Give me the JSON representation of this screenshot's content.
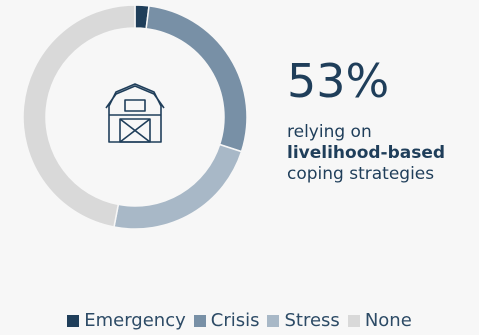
{
  "chart_data": {
    "type": "pie",
    "categories": [
      "Emergency",
      "Crisis",
      "Stress",
      "None"
    ],
    "values": [
      2,
      28,
      23,
      47
    ],
    "colors": [
      "#1f3e5a",
      "#7890a6",
      "#a8b8c7",
      "#d9d9d9"
    ]
  },
  "stat": {
    "value": "53%",
    "line1": "relying on",
    "line2": "livelihood-based",
    "line3": "coping strategies"
  },
  "center_icon": "barn-icon"
}
